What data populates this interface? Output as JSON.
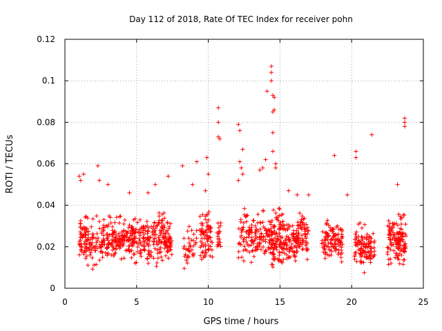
{
  "chart_data": {
    "type": "scatter",
    "title": "Day 112 of 2018, Rate Of TEC Index for receiver pohn",
    "xlabel": "GPS time / hours",
    "ylabel": "ROTI / TECUs",
    "xlim": [
      0,
      25
    ],
    "ylim": [
      0,
      0.12
    ],
    "x_ticks": [
      0,
      5,
      10,
      15,
      20,
      25
    ],
    "x_tick_labels": [
      "0",
      "5",
      "10",
      "15",
      "20",
      "25"
    ],
    "y_ticks": [
      0,
      0.02,
      0.04,
      0.06,
      0.08,
      0.1,
      0.12
    ],
    "y_tick_labels": [
      "0",
      "0.02",
      "0.04",
      "0.06",
      "0.08",
      "0.1",
      "0.12"
    ],
    "grid": true,
    "marker": "plus",
    "marker_color": "#ff0000",
    "series": [
      {
        "name": "ROTI",
        "clusters": [
          {
            "x_range": [
              1.0,
              1.5
            ],
            "y_range": [
              0.014,
              0.036
            ],
            "n": 45
          },
          {
            "x_range": [
              1.4,
              2.3
            ],
            "y_range": [
              0.01,
              0.034
            ],
            "n": 55
          },
          {
            "x_range": [
              2.3,
              3.1
            ],
            "y_range": [
              0.01,
              0.035
            ],
            "n": 55
          },
          {
            "x_range": [
              3.1,
              3.9
            ],
            "y_range": [
              0.012,
              0.036
            ],
            "n": 60
          },
          {
            "x_range": [
              3.9,
              4.6
            ],
            "y_range": [
              0.012,
              0.033
            ],
            "n": 50
          },
          {
            "x_range": [
              4.6,
              5.4
            ],
            "y_range": [
              0.012,
              0.036
            ],
            "n": 65
          },
          {
            "x_range": [
              5.4,
              6.2
            ],
            "y_range": [
              0.012,
              0.034
            ],
            "n": 60
          },
          {
            "x_range": [
              6.2,
              7.0
            ],
            "y_range": [
              0.012,
              0.038
            ],
            "n": 70
          },
          {
            "x_range": [
              7.0,
              7.5
            ],
            "y_range": [
              0.012,
              0.034
            ],
            "n": 45
          },
          {
            "x_range": [
              8.2,
              9.2
            ],
            "y_range": [
              0.01,
              0.03
            ],
            "n": 35
          },
          {
            "x_range": [
              9.4,
              10.3
            ],
            "y_range": [
              0.01,
              0.04
            ],
            "n": 75
          },
          {
            "x_range": [
              10.6,
              10.9
            ],
            "y_range": [
              0.015,
              0.035
            ],
            "n": 20
          },
          {
            "x_range": [
              12.1,
              13.2
            ],
            "y_range": [
              0.01,
              0.04
            ],
            "n": 70
          },
          {
            "x_range": [
              13.2,
              14.4
            ],
            "y_range": [
              0.012,
              0.037
            ],
            "n": 80
          },
          {
            "x_range": [
              14.4,
              15.3
            ],
            "y_range": [
              0.008,
              0.04
            ],
            "n": 110
          },
          {
            "x_range": [
              15.3,
              16.2
            ],
            "y_range": [
              0.01,
              0.037
            ],
            "n": 75
          },
          {
            "x_range": [
              16.2,
              17.0
            ],
            "y_range": [
              0.012,
              0.038
            ],
            "n": 65
          },
          {
            "x_range": [
              17.9,
              18.7
            ],
            "y_range": [
              0.012,
              0.034
            ],
            "n": 55
          },
          {
            "x_range": [
              18.7,
              19.4
            ],
            "y_range": [
              0.012,
              0.034
            ],
            "n": 55
          },
          {
            "x_range": [
              20.2,
              21.0
            ],
            "y_range": [
              0.008,
              0.032
            ],
            "n": 65
          },
          {
            "x_range": [
              21.0,
              21.6
            ],
            "y_range": [
              0.01,
              0.03
            ],
            "n": 45
          },
          {
            "x_range": [
              22.5,
              23.3
            ],
            "y_range": [
              0.01,
              0.036
            ],
            "n": 80
          },
          {
            "x_range": [
              23.3,
              23.8
            ],
            "y_range": [
              0.01,
              0.036
            ],
            "n": 55
          }
        ],
        "notable_points": [
          {
            "x": 1.0,
            "y": 0.054
          },
          {
            "x": 1.1,
            "y": 0.052
          },
          {
            "x": 1.3,
            "y": 0.055
          },
          {
            "x": 2.3,
            "y": 0.059
          },
          {
            "x": 2.4,
            "y": 0.052
          },
          {
            "x": 3.0,
            "y": 0.05
          },
          {
            "x": 4.5,
            "y": 0.046
          },
          {
            "x": 5.8,
            "y": 0.046
          },
          {
            "x": 6.3,
            "y": 0.05
          },
          {
            "x": 7.2,
            "y": 0.054
          },
          {
            "x": 8.2,
            "y": 0.059
          },
          {
            "x": 8.9,
            "y": 0.05
          },
          {
            "x": 9.2,
            "y": 0.061
          },
          {
            "x": 9.9,
            "y": 0.063
          },
          {
            "x": 9.8,
            "y": 0.047
          },
          {
            "x": 10.0,
            "y": 0.055
          },
          {
            "x": 10.7,
            "y": 0.087
          },
          {
            "x": 10.7,
            "y": 0.08
          },
          {
            "x": 10.7,
            "y": 0.073
          },
          {
            "x": 10.8,
            "y": 0.072
          },
          {
            "x": 12.1,
            "y": 0.079
          },
          {
            "x": 12.2,
            "y": 0.076
          },
          {
            "x": 12.4,
            "y": 0.067
          },
          {
            "x": 12.2,
            "y": 0.061
          },
          {
            "x": 12.3,
            "y": 0.058
          },
          {
            "x": 12.4,
            "y": 0.055
          },
          {
            "x": 12.1,
            "y": 0.052
          },
          {
            "x": 13.6,
            "y": 0.057
          },
          {
            "x": 13.8,
            "y": 0.058
          },
          {
            "x": 14.0,
            "y": 0.062
          },
          {
            "x": 14.1,
            "y": 0.095
          },
          {
            "x": 14.4,
            "y": 0.107
          },
          {
            "x": 14.4,
            "y": 0.104
          },
          {
            "x": 14.4,
            "y": 0.1
          },
          {
            "x": 14.5,
            "y": 0.093
          },
          {
            "x": 14.6,
            "y": 0.092
          },
          {
            "x": 14.5,
            "y": 0.085
          },
          {
            "x": 14.6,
            "y": 0.086
          },
          {
            "x": 14.5,
            "y": 0.075
          },
          {
            "x": 14.5,
            "y": 0.066
          },
          {
            "x": 14.7,
            "y": 0.06
          },
          {
            "x": 14.7,
            "y": 0.058
          },
          {
            "x": 18.8,
            "y": 0.064
          },
          {
            "x": 20.3,
            "y": 0.066
          },
          {
            "x": 20.3,
            "y": 0.063
          },
          {
            "x": 21.4,
            "y": 0.074
          },
          {
            "x": 23.7,
            "y": 0.082
          },
          {
            "x": 23.7,
            "y": 0.08
          },
          {
            "x": 23.7,
            "y": 0.078
          },
          {
            "x": 23.2,
            "y": 0.05
          },
          {
            "x": 19.7,
            "y": 0.045
          },
          {
            "x": 17.0,
            "y": 0.045
          },
          {
            "x": 15.6,
            "y": 0.047
          },
          {
            "x": 16.2,
            "y": 0.045
          }
        ]
      }
    ]
  }
}
